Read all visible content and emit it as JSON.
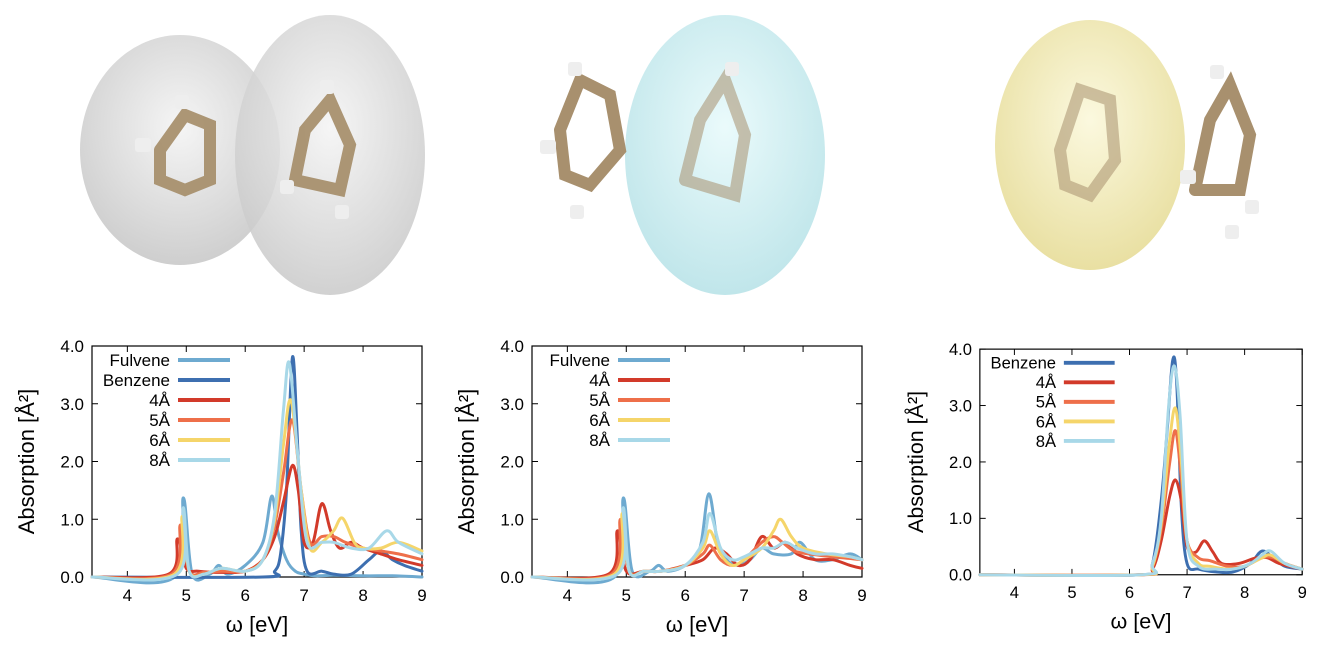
{
  "colors": {
    "Fulvene": "#6eaad0",
    "Benzene": "#3d6fb0",
    "4Å": "#d23a2a",
    "5Å": "#ee6f4a",
    "6Å": "#f5d56a",
    "8Å": "#a8d8e8",
    "surface_gray": "#dddddd",
    "surface_cyan": "#cdeef0",
    "surface_yellow": "#f4efb8",
    "carbon": "#a8906e",
    "hydrogen": "#eeeeee"
  },
  "chart_data": [
    {
      "type": "line",
      "xlabel": "ω [eV]",
      "ylabel": "Absorption [Å²]",
      "xlim": [
        3.4,
        9
      ],
      "ylim": [
        0,
        4
      ],
      "xticks": [
        "4",
        "5",
        "6",
        "7",
        "8",
        "9"
      ],
      "yticks": [
        "0.0",
        "1.0",
        "2.0",
        "3.0",
        "4.0"
      ],
      "legend_position": "top-left",
      "series": [
        {
          "name": "Fulvene",
          "x": [
            3.4,
            4.8,
            4.95,
            5.1,
            5.4,
            5.55,
            5.7,
            6.0,
            6.3,
            6.45,
            6.55,
            6.7,
            6.85,
            7.0,
            7.2,
            7.5,
            8.0,
            8.5,
            9.0
          ],
          "y": [
            0,
            0,
            1.37,
            0.05,
            0.05,
            0.2,
            0.05,
            0.2,
            0.6,
            1.4,
            0.8,
            0.3,
            0.1,
            0.05,
            0.02,
            0.03,
            0.02,
            0.02,
            0.0
          ]
        },
        {
          "name": "Benzene",
          "x": [
            3.4,
            6.3,
            6.5,
            6.6,
            6.7,
            6.8,
            6.88,
            6.95,
            7.05,
            7.3,
            7.5,
            7.8,
            8.1,
            8.3,
            8.5,
            8.7,
            9.0
          ],
          "y": [
            0,
            0,
            0.1,
            0.4,
            1.5,
            3.8,
            2.5,
            0.8,
            0.1,
            0.1,
            0.05,
            0.05,
            0.3,
            0.45,
            0.3,
            0.2,
            0.1
          ]
        },
        {
          "name": "4Å",
          "x": [
            3.4,
            4.7,
            4.85,
            5.0,
            5.2,
            5.6,
            6.0,
            6.3,
            6.5,
            6.65,
            6.8,
            6.9,
            7.0,
            7.15,
            7.3,
            7.45,
            7.6,
            7.8,
            8.0,
            8.3,
            8.6,
            9.0
          ],
          "y": [
            0,
            0.05,
            0.66,
            0.15,
            0.1,
            0.08,
            0.1,
            0.3,
            0.7,
            1.3,
            1.93,
            1.5,
            0.6,
            0.6,
            1.27,
            0.8,
            0.5,
            0.6,
            0.5,
            0.4,
            0.3,
            0.2
          ]
        },
        {
          "name": "5Å",
          "x": [
            3.4,
            4.75,
            4.9,
            5.05,
            5.3,
            5.6,
            6.0,
            6.3,
            6.5,
            6.65,
            6.8,
            6.95,
            7.1,
            7.3,
            7.5,
            7.7,
            8.0,
            8.3,
            8.6,
            9.0
          ],
          "y": [
            0,
            0.05,
            0.9,
            0.1,
            0.08,
            0.1,
            0.1,
            0.3,
            0.9,
            1.8,
            2.72,
            1.5,
            0.6,
            0.7,
            0.7,
            0.6,
            0.5,
            0.45,
            0.4,
            0.3
          ]
        },
        {
          "name": "6Å",
          "x": [
            3.4,
            4.8,
            4.93,
            5.05,
            5.3,
            5.6,
            6.0,
            6.3,
            6.5,
            6.65,
            6.78,
            6.95,
            7.1,
            7.3,
            7.5,
            7.65,
            7.85,
            8.0,
            8.3,
            8.6,
            9.0
          ],
          "y": [
            0,
            0.05,
            1.05,
            0.1,
            0.05,
            0.15,
            0.1,
            0.3,
            1.0,
            2.3,
            3.05,
            1.5,
            0.5,
            0.6,
            0.8,
            1.02,
            0.6,
            0.5,
            0.5,
            0.6,
            0.45
          ]
        },
        {
          "name": "8Å",
          "x": [
            3.4,
            4.85,
            4.95,
            5.05,
            5.3,
            5.6,
            6.0,
            6.3,
            6.5,
            6.65,
            6.75,
            6.9,
            7.05,
            7.3,
            7.5,
            7.8,
            8.1,
            8.4,
            8.6,
            9.0
          ],
          "y": [
            0,
            0.05,
            1.2,
            0.1,
            0.05,
            0.15,
            0.1,
            0.3,
            1.1,
            2.9,
            3.7,
            2.0,
            0.6,
            0.6,
            0.6,
            0.5,
            0.5,
            0.8,
            0.6,
            0.4
          ]
        }
      ]
    },
    {
      "type": "line",
      "xlabel": "ω [eV]",
      "ylabel": "Absorption [Å²]",
      "xlim": [
        3.4,
        9
      ],
      "ylim": [
        0,
        4
      ],
      "xticks": [
        "4",
        "5",
        "6",
        "7",
        "8",
        "9"
      ],
      "yticks": [
        "0.0",
        "1.0",
        "2.0",
        "3.0",
        "4.0"
      ],
      "legend_position": "top-left",
      "series": [
        {
          "name": "Fulvene",
          "x": [
            3.4,
            4.8,
            4.95,
            5.1,
            5.4,
            5.55,
            5.7,
            6.0,
            6.25,
            6.4,
            6.55,
            6.7,
            6.9,
            7.1,
            7.3,
            7.5,
            7.8,
            7.95,
            8.2,
            8.5,
            8.8,
            9.0
          ],
          "y": [
            0,
            0,
            1.37,
            0.1,
            0.1,
            0.2,
            0.1,
            0.2,
            0.5,
            1.44,
            0.6,
            0.3,
            0.2,
            0.3,
            0.5,
            0.4,
            0.4,
            0.6,
            0.3,
            0.3,
            0.4,
            0.3
          ]
        },
        {
          "name": "4Å",
          "x": [
            3.4,
            4.7,
            4.85,
            5.0,
            5.3,
            5.6,
            6.0,
            6.3,
            6.5,
            6.7,
            6.9,
            7.1,
            7.3,
            7.5,
            7.7,
            7.9,
            8.2,
            8.5,
            8.8,
            9.0
          ],
          "y": [
            0,
            0.05,
            0.8,
            0.1,
            0.1,
            0.1,
            0.2,
            0.3,
            0.5,
            0.4,
            0.2,
            0.3,
            0.7,
            0.5,
            0.6,
            0.4,
            0.3,
            0.3,
            0.2,
            0.15
          ]
        },
        {
          "name": "5Å",
          "x": [
            3.4,
            4.75,
            4.9,
            5.05,
            5.3,
            5.6,
            6.0,
            6.3,
            6.42,
            6.6,
            6.8,
            7.0,
            7.3,
            7.5,
            7.65,
            7.85,
            8.1,
            8.5,
            9.0
          ],
          "y": [
            0,
            0.05,
            1.0,
            0.1,
            0.1,
            0.1,
            0.2,
            0.4,
            0.55,
            0.3,
            0.2,
            0.3,
            0.6,
            0.7,
            0.6,
            0.45,
            0.4,
            0.35,
            0.3
          ]
        },
        {
          "name": "6Å",
          "x": [
            3.4,
            4.8,
            4.93,
            5.05,
            5.3,
            5.6,
            6.0,
            6.3,
            6.42,
            6.6,
            6.8,
            7.0,
            7.3,
            7.5,
            7.62,
            7.8,
            8.0,
            8.4,
            8.8,
            9.0
          ],
          "y": [
            0,
            0.05,
            1.1,
            0.1,
            0.1,
            0.1,
            0.2,
            0.5,
            0.8,
            0.4,
            0.2,
            0.3,
            0.5,
            0.8,
            1.0,
            0.7,
            0.5,
            0.4,
            0.35,
            0.3
          ]
        },
        {
          "name": "8Å",
          "x": [
            3.4,
            4.85,
            4.95,
            5.05,
            5.3,
            5.6,
            6.0,
            6.3,
            6.42,
            6.6,
            6.8,
            7.0,
            7.3,
            7.5,
            7.7,
            7.9,
            8.2,
            8.5,
            8.8,
            9.0
          ],
          "y": [
            0,
            0.05,
            1.2,
            0.1,
            0.1,
            0.1,
            0.2,
            0.6,
            1.1,
            0.5,
            0.3,
            0.35,
            0.5,
            0.5,
            0.6,
            0.5,
            0.4,
            0.4,
            0.35,
            0.3
          ]
        }
      ]
    },
    {
      "type": "line",
      "xlabel": "ω [eV]",
      "ylabel": "Absorption [Å²]",
      "xlim": [
        3.4,
        9
      ],
      "ylim": [
        0,
        4
      ],
      "xticks": [
        "4",
        "5",
        "6",
        "7",
        "8",
        "9"
      ],
      "yticks": [
        "0.0",
        "1.0",
        "2.0",
        "3.0",
        "4.0"
      ],
      "legend_position": "top-left",
      "series": [
        {
          "name": "Benzene",
          "x": [
            3.4,
            6.2,
            6.4,
            6.55,
            6.65,
            6.75,
            6.82,
            6.9,
            7.0,
            7.2,
            7.5,
            7.8,
            8.1,
            8.3,
            8.5,
            8.7,
            9.0
          ],
          "y": [
            0,
            0,
            0.2,
            1.3,
            2.5,
            3.8,
            3.4,
            1.2,
            0.2,
            0.1,
            0.05,
            0.05,
            0.2,
            0.42,
            0.3,
            0.15,
            0.1
          ]
        },
        {
          "name": "4Å",
          "x": [
            3.4,
            6.2,
            6.4,
            6.55,
            6.7,
            6.8,
            6.9,
            7.0,
            7.15,
            7.3,
            7.45,
            7.6,
            7.9,
            8.2,
            8.4,
            8.6,
            9.0
          ],
          "y": [
            0,
            0,
            0.1,
            0.6,
            1.4,
            1.68,
            1.3,
            0.5,
            0.4,
            0.6,
            0.4,
            0.2,
            0.2,
            0.3,
            0.3,
            0.2,
            0.1
          ]
        },
        {
          "name": "5Å",
          "x": [
            3.4,
            6.2,
            6.4,
            6.55,
            6.7,
            6.8,
            6.9,
            7.0,
            7.2,
            7.4,
            7.7,
            8.0,
            8.3,
            8.5,
            8.7,
            9.0
          ],
          "y": [
            0,
            0,
            0.15,
            0.8,
            2.0,
            2.55,
            1.7,
            0.6,
            0.3,
            0.25,
            0.15,
            0.15,
            0.3,
            0.3,
            0.2,
            0.1
          ]
        },
        {
          "name": "6Å",
          "x": [
            3.4,
            6.2,
            6.4,
            6.55,
            6.7,
            6.8,
            6.9,
            7.0,
            7.2,
            7.4,
            7.7,
            8.0,
            8.3,
            8.45,
            8.7,
            9.0
          ],
          "y": [
            0,
            0,
            0.15,
            0.9,
            2.4,
            2.95,
            2.0,
            0.6,
            0.2,
            0.15,
            0.1,
            0.15,
            0.3,
            0.35,
            0.2,
            0.1
          ]
        },
        {
          "name": "8Å",
          "x": [
            3.4,
            6.2,
            6.4,
            6.55,
            6.68,
            6.78,
            6.88,
            7.0,
            7.2,
            7.5,
            7.8,
            8.1,
            8.3,
            8.45,
            8.7,
            9.0
          ],
          "y": [
            0,
            0,
            0.2,
            1.0,
            3.0,
            3.7,
            2.8,
            0.6,
            0.15,
            0.1,
            0.1,
            0.2,
            0.35,
            0.42,
            0.2,
            0.1
          ]
        }
      ]
    }
  ]
}
